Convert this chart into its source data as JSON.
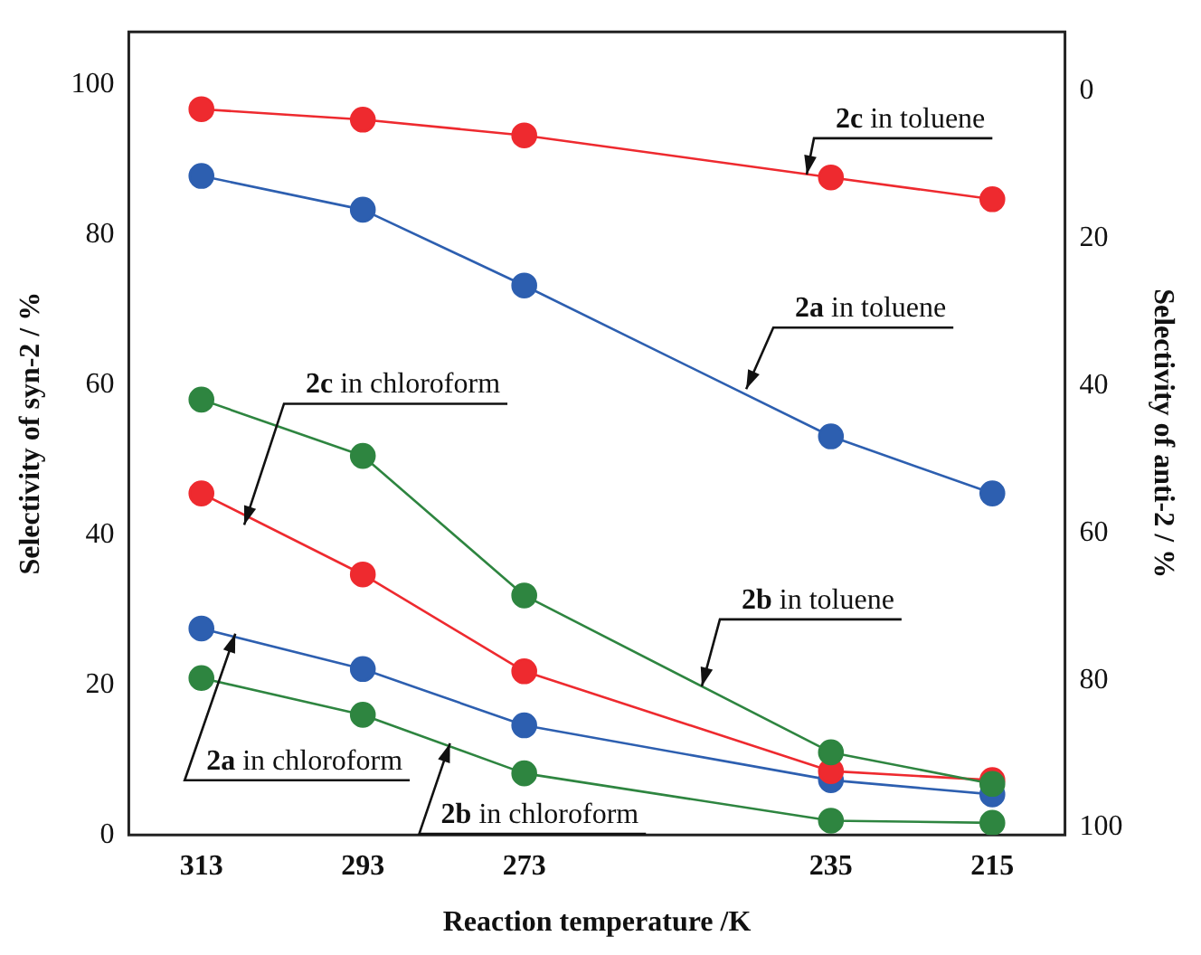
{
  "chart_data": {
    "type": "line",
    "xlabel": "Reaction temperature /K",
    "ylabel": "Selectivity of syn-2 / %",
    "y2label": "Selectivity of anti-2 / %",
    "x": [
      313,
      293,
      273,
      235,
      215
    ],
    "xlim": [
      322,
      206
    ],
    "xticks": [
      313,
      293,
      273,
      235,
      215
    ],
    "ylim": [
      0,
      107
    ],
    "yticks": [
      0,
      20,
      40,
      60,
      80,
      100
    ],
    "y2lim": [
      101,
      -8
    ],
    "y2ticks": [
      0,
      20,
      40,
      60,
      80,
      100
    ],
    "grid": false,
    "legend": false,
    "marker": "circle",
    "line_style": "solid",
    "series": [
      {
        "color": "#ee2a2f",
        "values": [
          96.7,
          95.3,
          93.2,
          87.6,
          84.7
        ]
      },
      {
        "color": "#2d5fb0",
        "values": [
          87.8,
          83.3,
          73.2,
          53.1,
          45.5
        ]
      },
      {
        "color": "#2e8540",
        "values": [
          58.0,
          50.5,
          31.9,
          11.0,
          6.8
        ]
      },
      {
        "color": "#ee2a2f",
        "values": [
          45.5,
          34.7,
          21.8,
          8.5,
          7.3
        ]
      },
      {
        "color": "#2d5fb0",
        "values": [
          27.5,
          22.1,
          14.6,
          7.3,
          5.4
        ]
      },
      {
        "color": "#2e8540",
        "values": [
          20.9,
          16.0,
          8.2,
          1.9,
          1.6
        ]
      }
    ],
    "annotations": [
      {
        "text": "2c in toluene",
        "x": 238,
        "y": 88
      },
      {
        "text": "2a in toluene",
        "x": 245.5,
        "y": 59.4
      },
      {
        "text": "2c in chloroform",
        "x": 307.7,
        "y": 41.3
      },
      {
        "text": "2b in toluene",
        "x": 251,
        "y": 19.8
      },
      {
        "text": "2a in chloroform",
        "x": 308.8,
        "y": 26.8
      },
      {
        "text": "2b in chloroform",
        "x": 282.2,
        "y": 12.2
      }
    ]
  }
}
